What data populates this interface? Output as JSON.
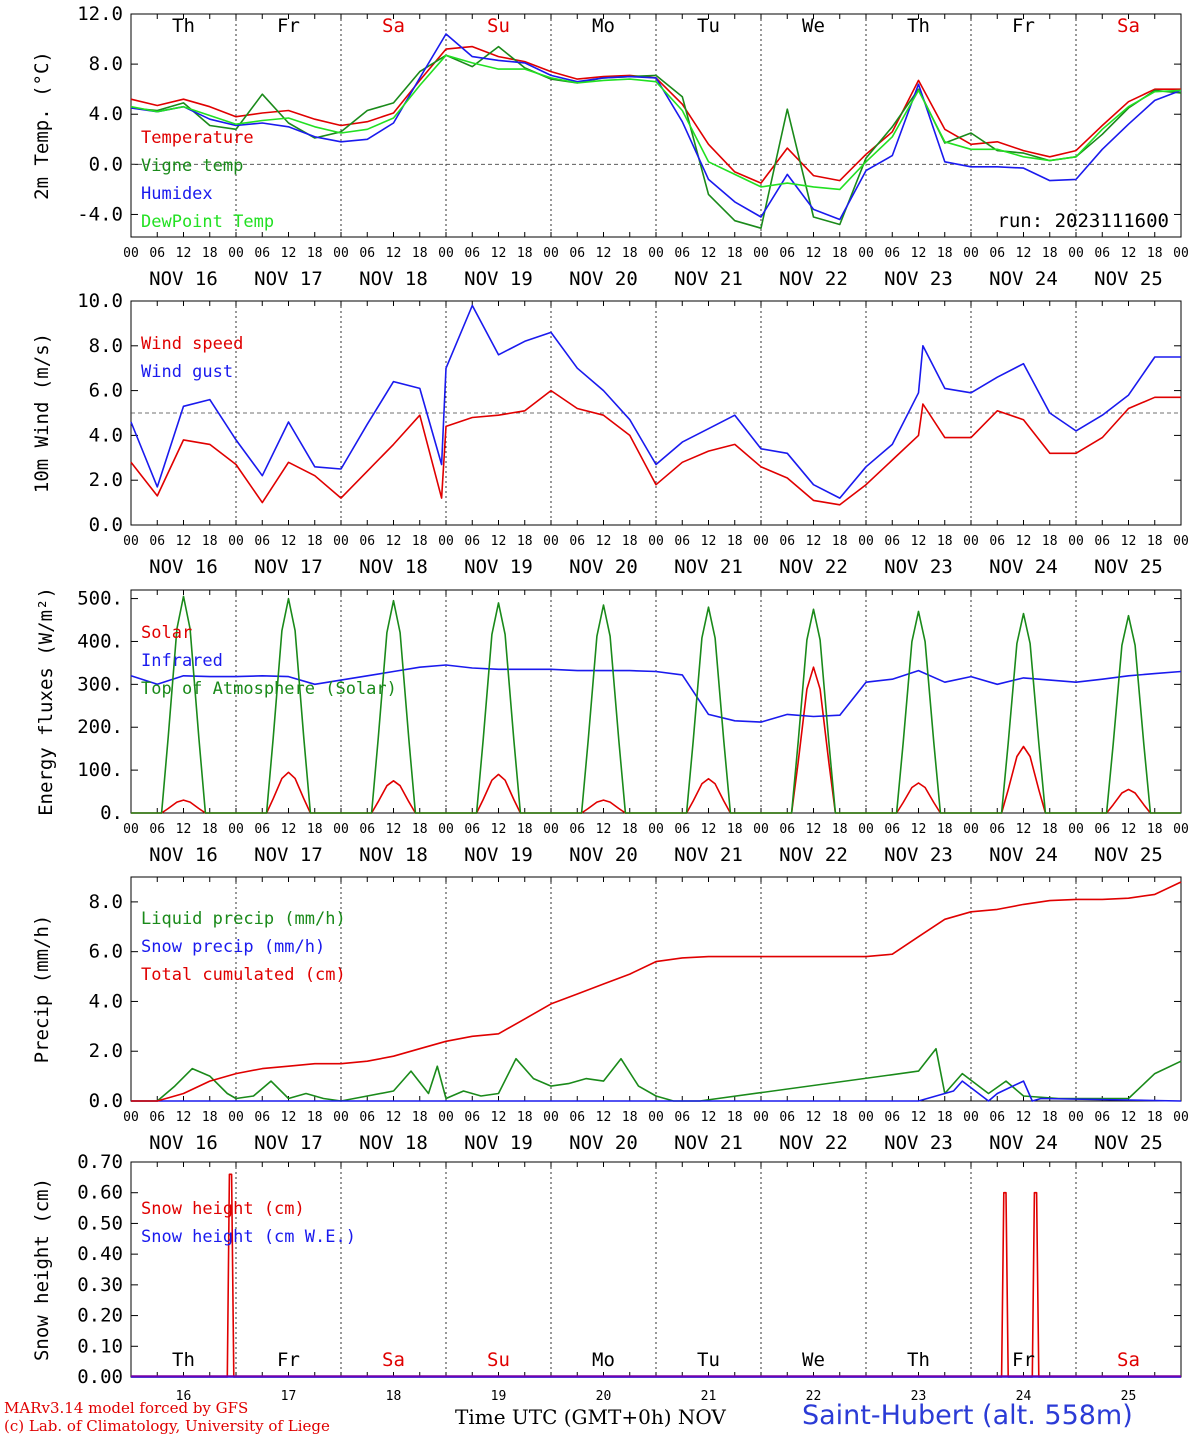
{
  "run_label": "run: 2023111600",
  "days_top": [
    "Th",
    "Fr",
    "Sa",
    "Su",
    "Mo",
    "Tu",
    "We",
    "Th",
    "Fr",
    "Sa"
  ],
  "days_weekend_color": "#e00000",
  "dates": [
    "NOV 16",
    "NOV 17",
    "NOV 18",
    "NOV 19",
    "NOV 20",
    "NOV 21",
    "NOV 22",
    "NOV 23",
    "NOV 24",
    "NOV 25"
  ],
  "hour_ticks": [
    "00",
    "06",
    "12",
    "18"
  ],
  "day_numbers": [
    "16",
    "17",
    "18",
    "19",
    "20",
    "21",
    "22",
    "23",
    "24",
    "25"
  ],
  "x_axis_title": "Time UTC (GMT+0h)",
  "x_axis_month": "NOV",
  "footer": {
    "model": "MARv3.14 model forced by GFS",
    "copyright": "(c) Lab. of Climatology, University of Liege"
  },
  "station": "Saint-Hubert (alt. 558m)",
  "colors": {
    "red": "#e00000",
    "green": "#1a8a1a",
    "blue": "#1a1aee",
    "lightgreen": "#22e022",
    "purple": "#8000a0"
  },
  "chart_data": [
    {
      "type": "line",
      "ylabel": "2m Temp. (°C)",
      "ylim": [
        -5.8,
        12
      ],
      "yticks": [
        -4.0,
        0.0,
        4.0,
        8.0,
        12.0
      ],
      "ytick_labels": [
        "-4.0",
        "0.0",
        "4.0",
        "8.0",
        "12.0"
      ],
      "ref_line": 0,
      "x_unit": "hours since Nov 16 00 UTC",
      "series": [
        {
          "name": "Temperature",
          "color": "#e00000",
          "x": [
            0,
            6,
            12,
            18,
            24,
            30,
            36,
            42,
            48,
            54,
            60,
            66,
            72,
            78,
            84,
            90,
            96,
            102,
            108,
            114,
            120,
            126,
            132,
            138,
            144,
            150,
            156,
            162,
            168,
            174,
            180,
            186,
            192,
            198,
            204,
            210,
            216,
            222,
            228,
            234,
            240
          ],
          "values": [
            5.2,
            4.7,
            5.2,
            4.6,
            3.8,
            4.1,
            4.3,
            3.6,
            3.1,
            3.4,
            4.1,
            6.7,
            9.2,
            9.4,
            8.6,
            8.2,
            7.4,
            6.8,
            7.0,
            7.1,
            6.9,
            4.8,
            1.6,
            -0.6,
            -1.5,
            1.3,
            -0.9,
            -1.3,
            0.8,
            2.6,
            6.7,
            2.8,
            1.6,
            1.8,
            1.1,
            0.6,
            1.1,
            3.1,
            5.0,
            6.0,
            6.0
          ]
        },
        {
          "name": "Vigne temp",
          "color": "#1a8a1a",
          "x": [
            0,
            6,
            12,
            18,
            24,
            30,
            36,
            42,
            48,
            54,
            60,
            66,
            72,
            78,
            84,
            90,
            96,
            102,
            108,
            114,
            120,
            126,
            132,
            138,
            144,
            150,
            156,
            162,
            168,
            174,
            180,
            186,
            192,
            198,
            204,
            210,
            216,
            222,
            228,
            234,
            240
          ],
          "values": [
            4.5,
            4.3,
            4.9,
            3.1,
            2.8,
            5.6,
            3.3,
            2.1,
            2.6,
            4.3,
            4.9,
            7.4,
            8.7,
            7.8,
            9.4,
            7.7,
            6.8,
            6.5,
            6.9,
            7.0,
            7.1,
            5.4,
            -2.4,
            -4.5,
            -5.1,
            4.4,
            -4.2,
            -4.8,
            0.5,
            3.0,
            6.0,
            1.7,
            2.5,
            1.1,
            0.9,
            0.3,
            0.6,
            2.4,
            4.5,
            5.9,
            5.7
          ]
        },
        {
          "name": "Humidex",
          "color": "#1a1aee",
          "x": [
            0,
            6,
            12,
            18,
            24,
            30,
            36,
            42,
            48,
            54,
            60,
            66,
            72,
            78,
            84,
            90,
            96,
            102,
            108,
            114,
            120,
            126,
            132,
            138,
            144,
            150,
            156,
            162,
            168,
            174,
            180,
            186,
            192,
            198,
            204,
            210,
            216,
            222,
            228,
            234,
            240
          ],
          "values": [
            4.5,
            4.2,
            4.6,
            3.6,
            3.1,
            3.3,
            3.0,
            2.2,
            1.8,
            2.0,
            3.3,
            6.9,
            10.4,
            8.6,
            8.3,
            8.1,
            7.1,
            6.6,
            6.9,
            7.0,
            6.9,
            3.4,
            -1.2,
            -3.0,
            -4.2,
            -0.8,
            -3.6,
            -4.4,
            -0.5,
            0.7,
            6.4,
            0.2,
            -0.2,
            -0.2,
            -0.3,
            -1.3,
            -1.2,
            1.2,
            3.2,
            5.1,
            5.9
          ]
        },
        {
          "name": "DewPoint Temp",
          "color": "#22e022",
          "x": [
            0,
            6,
            12,
            18,
            24,
            30,
            36,
            42,
            48,
            54,
            60,
            66,
            72,
            78,
            84,
            90,
            96,
            102,
            108,
            114,
            120,
            126,
            132,
            138,
            144,
            150,
            156,
            162,
            168,
            174,
            180,
            186,
            192,
            198,
            204,
            210,
            216,
            222,
            228,
            234,
            240
          ],
          "values": [
            4.6,
            4.2,
            4.6,
            3.9,
            3.2,
            3.5,
            3.7,
            3.0,
            2.5,
            2.8,
            3.7,
            6.3,
            8.7,
            8.1,
            7.6,
            7.6,
            6.9,
            6.5,
            6.7,
            6.8,
            6.6,
            4.3,
            0.2,
            -0.8,
            -1.8,
            -1.5,
            -1.8,
            -2.0,
            0.2,
            2.2,
            5.9,
            1.8,
            1.2,
            1.2,
            0.6,
            0.3,
            0.6,
            2.8,
            4.6,
            5.8,
            5.9
          ]
        }
      ],
      "legend": [
        "Temperature",
        "Vigne temp",
        "Humidex",
        "DewPoint Temp"
      ]
    },
    {
      "type": "line",
      "ylabel": "10m Wind (m/s)",
      "ylim": [
        0,
        10
      ],
      "yticks": [
        0,
        2,
        4,
        6,
        8,
        10
      ],
      "ytick_labels": [
        "0.0",
        "2.0",
        "4.0",
        "6.0",
        "8.0",
        "10.0"
      ],
      "ref_line": 5,
      "series": [
        {
          "name": "Wind speed",
          "color": "#e00000",
          "x": [
            0,
            6,
            12,
            18,
            24,
            30,
            36,
            42,
            48,
            54,
            60,
            66,
            71,
            72,
            78,
            84,
            90,
            96,
            102,
            108,
            114,
            120,
            126,
            132,
            138,
            144,
            150,
            156,
            162,
            168,
            174,
            180,
            181,
            186,
            192,
            198,
            204,
            210,
            216,
            222,
            228,
            234,
            240
          ],
          "values": [
            2.8,
            1.3,
            3.8,
            3.6,
            2.7,
            1.0,
            2.8,
            2.2,
            1.2,
            2.4,
            3.6,
            4.9,
            1.2,
            4.4,
            4.8,
            4.9,
            5.1,
            6.0,
            5.2,
            4.9,
            4.0,
            1.8,
            2.8,
            3.3,
            3.6,
            2.6,
            2.1,
            1.1,
            0.9,
            1.8,
            2.9,
            4.0,
            5.4,
            3.9,
            3.9,
            5.1,
            4.7,
            3.2,
            3.2,
            3.9,
            5.2,
            5.7,
            5.7
          ]
        },
        {
          "name": "Wind gust",
          "color": "#1a1aee",
          "x": [
            0,
            6,
            12,
            18,
            24,
            30,
            36,
            42,
            48,
            54,
            60,
            66,
            71,
            72,
            78,
            84,
            90,
            96,
            102,
            108,
            114,
            120,
            126,
            132,
            138,
            144,
            150,
            156,
            162,
            168,
            174,
            180,
            181,
            186,
            192,
            198,
            204,
            210,
            216,
            222,
            228,
            234,
            240
          ],
          "values": [
            4.6,
            1.7,
            5.3,
            5.6,
            3.8,
            2.2,
            4.6,
            2.6,
            2.5,
            4.5,
            6.4,
            6.1,
            2.7,
            7.0,
            9.8,
            7.6,
            8.2,
            8.6,
            7.0,
            6.0,
            4.7,
            2.7,
            3.7,
            4.3,
            4.9,
            3.4,
            3.2,
            1.8,
            1.2,
            2.6,
            3.6,
            5.9,
            8.0,
            6.1,
            5.9,
            6.6,
            7.2,
            5.0,
            4.2,
            4.9,
            5.8,
            7.5,
            7.5
          ]
        }
      ],
      "legend": [
        "Wind speed",
        "Wind gust"
      ]
    },
    {
      "type": "line",
      "ylabel": "Energy fluxes (W/m²)",
      "ylim": [
        0,
        520
      ],
      "yticks": [
        0,
        100,
        200,
        300,
        400,
        500
      ],
      "ytick_labels": [
        "0.",
        "100.",
        "200.",
        "300.",
        "400.",
        "500."
      ],
      "series": [
        {
          "name": "Solar",
          "color": "#e00000",
          "peaks": [
            30,
            95,
            75,
            90,
            30,
            80,
            340,
            70,
            155,
            55
          ]
        },
        {
          "name": "Infrared",
          "color": "#1a1aee",
          "x": [
            0,
            6,
            12,
            18,
            24,
            30,
            36,
            42,
            48,
            54,
            60,
            66,
            72,
            78,
            84,
            90,
            96,
            102,
            108,
            114,
            120,
            126,
            132,
            138,
            144,
            150,
            156,
            162,
            168,
            174,
            180,
            186,
            192,
            198,
            204,
            210,
            216,
            222,
            228,
            234,
            240
          ],
          "values": [
            320,
            300,
            320,
            318,
            318,
            320,
            318,
            300,
            310,
            320,
            330,
            340,
            345,
            338,
            335,
            335,
            335,
            332,
            332,
            332,
            330,
            322,
            230,
            215,
            212,
            230,
            225,
            228,
            305,
            312,
            332,
            305,
            318,
            300,
            315,
            310,
            305,
            312,
            320,
            325,
            330
          ]
        },
        {
          "name": "Top of Atmosphere (Solar)",
          "color": "#1a8a1a",
          "peaks": [
            505,
            500,
            495,
            490,
            485,
            480,
            475,
            470,
            465,
            460
          ]
        }
      ],
      "legend": [
        "Solar",
        "Infrared",
        "Top of Atmosphere (Solar)"
      ]
    },
    {
      "type": "line",
      "ylabel": "Precip (mm/h)",
      "ylim": [
        0,
        9
      ],
      "yticks": [
        0,
        2,
        4,
        6,
        8
      ],
      "ytick_labels": [
        "0.0",
        "2.0",
        "4.0",
        "6.0",
        "8.0"
      ],
      "series": [
        {
          "name": "Liquid precip (mm/h)",
          "color": "#1a8a1a",
          "x": [
            0,
            6,
            10,
            14,
            18,
            22,
            24,
            28,
            32,
            36,
            40,
            44,
            48,
            54,
            60,
            64,
            68,
            70,
            72,
            76,
            80,
            84,
            88,
            92,
            96,
            100,
            104,
            108,
            112,
            116,
            120,
            124,
            130,
            180,
            184,
            186,
            190,
            196,
            200,
            204,
            212,
            228,
            234,
            240
          ],
          "values": [
            0,
            0,
            0.6,
            1.3,
            1.0,
            0.3,
            0.1,
            0.2,
            0.8,
            0.1,
            0.3,
            0.1,
            0,
            0.2,
            0.4,
            1.2,
            0.3,
            1.4,
            0.1,
            0.4,
            0.2,
            0.3,
            1.7,
            0.9,
            0.6,
            0.7,
            0.9,
            0.8,
            1.7,
            0.6,
            0.2,
            0,
            0,
            1.2,
            2.1,
            0.3,
            1.1,
            0.3,
            0.8,
            0.2,
            0.1,
            0.1,
            1.1,
            1.6
          ]
        },
        {
          "name": "Snow precip (mm/h)",
          "color": "#1a1aee",
          "x": [
            0,
            180,
            188,
            190,
            196,
            198,
            204,
            206,
            208,
            240
          ],
          "values": [
            0,
            0,
            0.4,
            0.8,
            0,
            0.3,
            0.8,
            0,
            0.1,
            0
          ]
        },
        {
          "name": "Total cumulated (cm)",
          "color": "#e00000",
          "x": [
            0,
            6,
            12,
            18,
            24,
            30,
            36,
            42,
            48,
            54,
            60,
            66,
            72,
            78,
            84,
            90,
            96,
            102,
            108,
            114,
            120,
            126,
            132,
            138,
            144,
            150,
            156,
            162,
            168,
            174,
            180,
            186,
            192,
            198,
            204,
            210,
            216,
            222,
            228,
            234,
            240
          ],
          "values": [
            0,
            0,
            0.3,
            0.8,
            1.1,
            1.3,
            1.4,
            1.5,
            1.5,
            1.6,
            1.8,
            2.1,
            2.4,
            2.6,
            2.7,
            3.3,
            3.9,
            4.3,
            4.7,
            5.1,
            5.6,
            5.75,
            5.8,
            5.8,
            5.8,
            5.8,
            5.8,
            5.8,
            5.8,
            5.9,
            6.6,
            7.3,
            7.6,
            7.7,
            7.9,
            8.05,
            8.1,
            8.1,
            8.15,
            8.3,
            8.8
          ]
        }
      ],
      "legend": [
        "Liquid precip (mm/h)",
        "Snow precip (mm/h)",
        "Total cumulated (cm)"
      ]
    },
    {
      "type": "line",
      "ylabel": "Snow height (cm)",
      "ylim": [
        0,
        0.7
      ],
      "yticks": [
        0,
        0.1,
        0.2,
        0.3,
        0.4,
        0.5,
        0.6,
        0.7
      ],
      "ytick_labels": [
        "0.00",
        "0.10",
        "0.20",
        "0.30",
        "0.40",
        "0.50",
        "0.60",
        "0.70"
      ],
      "series": [
        {
          "name": "Snow height (cm)",
          "color": "#e00000",
          "x": [
            0,
            22,
            22.5,
            23,
            23.5,
            199,
            199.5,
            200,
            200.5,
            206,
            206.5,
            207,
            207.5,
            240
          ],
          "values": [
            0,
            0,
            0.66,
            0.66,
            0,
            0,
            0.6,
            0.6,
            0,
            0,
            0.6,
            0.6,
            0,
            0
          ]
        },
        {
          "name": "Snow height (cm W.E.)",
          "color": "#1a1aee",
          "x": [
            0,
            240
          ],
          "values": [
            0,
            0
          ]
        }
      ],
      "legend": [
        "Snow height (cm)",
        "Snow height (cm W.E.)"
      ]
    }
  ]
}
